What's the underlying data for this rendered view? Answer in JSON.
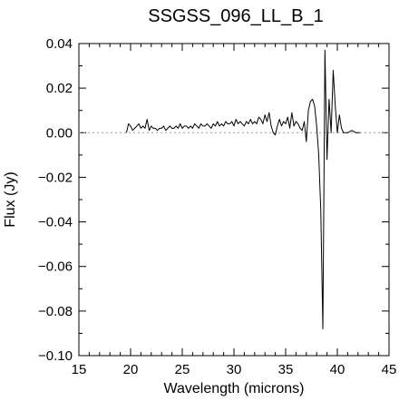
{
  "chart_data": {
    "type": "line",
    "title": "SSGSS_096_LL_B_1",
    "xlabel": "Wavelength (microns)",
    "ylabel": "Flux (Jy)",
    "xlim": [
      15,
      45
    ],
    "ylim": [
      -0.1,
      0.04
    ],
    "xticks": [
      15,
      20,
      25,
      30,
      35,
      40,
      45
    ],
    "xtick_labels": [
      "15",
      "20",
      "25",
      "30",
      "35",
      "40",
      "45"
    ],
    "yticks": [
      -0.1,
      -0.08,
      -0.06,
      -0.04,
      -0.02,
      0.0,
      0.02,
      0.04
    ],
    "ytick_labels": [
      "−0.10",
      "−0.08",
      "−0.06",
      "−0.04",
      "−0.02",
      "0.00",
      "0.02",
      "0.04"
    ],
    "zero_line": {
      "y": 0.0,
      "style": "dotted"
    },
    "grid": false,
    "colors": {
      "line": "#000000",
      "zero_line": "#999999",
      "axes": "#000000"
    },
    "series": [
      {
        "x": [
          19.6,
          19.8,
          20.0,
          20.2,
          20.4,
          20.6,
          20.8,
          21.0,
          21.2,
          21.4,
          21.6,
          21.8,
          22.0,
          22.2,
          22.4,
          22.6,
          22.8,
          23.0,
          23.2,
          23.4,
          23.6,
          23.8,
          24.0,
          24.2,
          24.4,
          24.6,
          24.8,
          25.0,
          25.2,
          25.4,
          25.6,
          25.8,
          26.0,
          26.2,
          26.4,
          26.6,
          26.8,
          27.0,
          27.2,
          27.4,
          27.6,
          27.8,
          28.0,
          28.2,
          28.4,
          28.6,
          28.8,
          29.0,
          29.2,
          29.4,
          29.6,
          29.8,
          30.0,
          30.2,
          30.4,
          30.6,
          30.8,
          31.0,
          31.2,
          31.4,
          31.6,
          31.8,
          32.0,
          32.2,
          32.4,
          32.6,
          32.8,
          33.0,
          33.2,
          33.4,
          33.6,
          33.8,
          34.0,
          34.2,
          34.4,
          34.6,
          34.8,
          35.0,
          35.2,
          35.4,
          35.6,
          35.8,
          36.0,
          36.2,
          36.4,
          36.6,
          36.8,
          37.0,
          37.2,
          37.4,
          37.6,
          37.8,
          38.0,
          38.2,
          38.4,
          38.6,
          38.8,
          39.0,
          39.2,
          39.4,
          39.6,
          39.8,
          40.0,
          40.2,
          40.4,
          40.6,
          41.0,
          41.4,
          41.8,
          42.2
        ],
        "y": [
          0.0,
          0.004,
          0.003,
          0.001,
          0.002,
          0.003,
          0.004,
          0.002,
          0.003,
          0.002,
          0.006,
          0.001,
          0.003,
          0.002,
          0.002,
          0.001,
          0.002,
          0.002,
          0.003,
          0.001,
          0.002,
          0.003,
          0.002,
          0.002,
          0.003,
          0.002,
          0.004,
          0.002,
          0.003,
          0.003,
          0.002,
          0.003,
          0.002,
          0.004,
          0.003,
          0.002,
          0.004,
          0.003,
          0.003,
          0.004,
          0.003,
          0.002,
          0.004,
          0.003,
          0.005,
          0.003,
          0.004,
          0.003,
          0.005,
          0.004,
          0.004,
          0.005,
          0.003,
          0.006,
          0.004,
          0.005,
          0.004,
          0.003,
          0.005,
          0.004,
          0.006,
          0.004,
          0.005,
          0.004,
          0.007,
          0.006,
          0.004,
          0.008,
          0.005,
          0.009,
          0.003,
          0.0,
          -0.001,
          0.003,
          0.006,
          0.003,
          0.005,
          0.004,
          0.007,
          0.002,
          0.009,
          0.003,
          0.005,
          0.004,
          0.002,
          0.001,
          0.005,
          -0.004,
          0.01,
          0.014,
          0.015,
          0.012,
          0.003,
          -0.01,
          -0.035,
          -0.088,
          0.037,
          -0.012,
          0.015,
          0.0,
          0.028,
          0.012,
          0.0,
          0.008,
          0.002,
          0.0,
          0.0,
          0.001,
          0.0,
          0.0
        ]
      }
    ]
  }
}
